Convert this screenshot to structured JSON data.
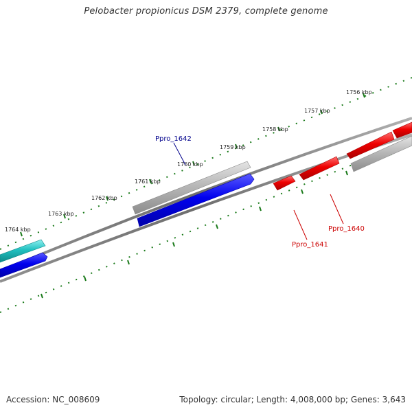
{
  "title": "Pelobacter propionicus DSM 2379, complete genome",
  "accession": "Accession: NC_008609",
  "summary": "Topology: circular; Length: 4,008,000 bp; Genes: 3,643",
  "colors": {
    "backbone": "#808080",
    "tick": "#1a7a1a",
    "forward_gene": "#0000ee",
    "reverse_gene": "#ee0000",
    "rna_gene": "#20c0c0",
    "other_feature": "#b8b8b8",
    "forward_label": "#00008b",
    "reverse_label": "#cc0000"
  },
  "scale": {
    "labels": [
      "1756 kbp",
      "1757 kbp",
      "1758 kbp",
      "1759 kbp",
      "1760 kbp",
      "1761 kbp",
      "1762 kbp",
      "1763 kbp",
      "1764 kbp"
    ]
  },
  "features": [
    {
      "type": "rna_gene",
      "strand": "+"
    },
    {
      "type": "forward_gene",
      "strand": "+"
    },
    {
      "type": "other_feature",
      "strand": "+"
    },
    {
      "type": "forward_gene",
      "strand": "+",
      "locus": "Ppro_1642"
    },
    {
      "type": "reverse_gene",
      "strand": "-",
      "locus": "Ppro_1641"
    },
    {
      "type": "reverse_gene",
      "strand": "-",
      "locus": "Ppro_1640"
    },
    {
      "type": "reverse_gene",
      "strand": "-"
    },
    {
      "type": "reverse_gene",
      "strand": "-"
    },
    {
      "type": "other_feature",
      "strand": "-"
    }
  ],
  "gene_labels": {
    "ppro_1642": "Ppro_1642",
    "ppro_1641": "Ppro_1641",
    "ppro_1640": "Ppro_1640"
  }
}
